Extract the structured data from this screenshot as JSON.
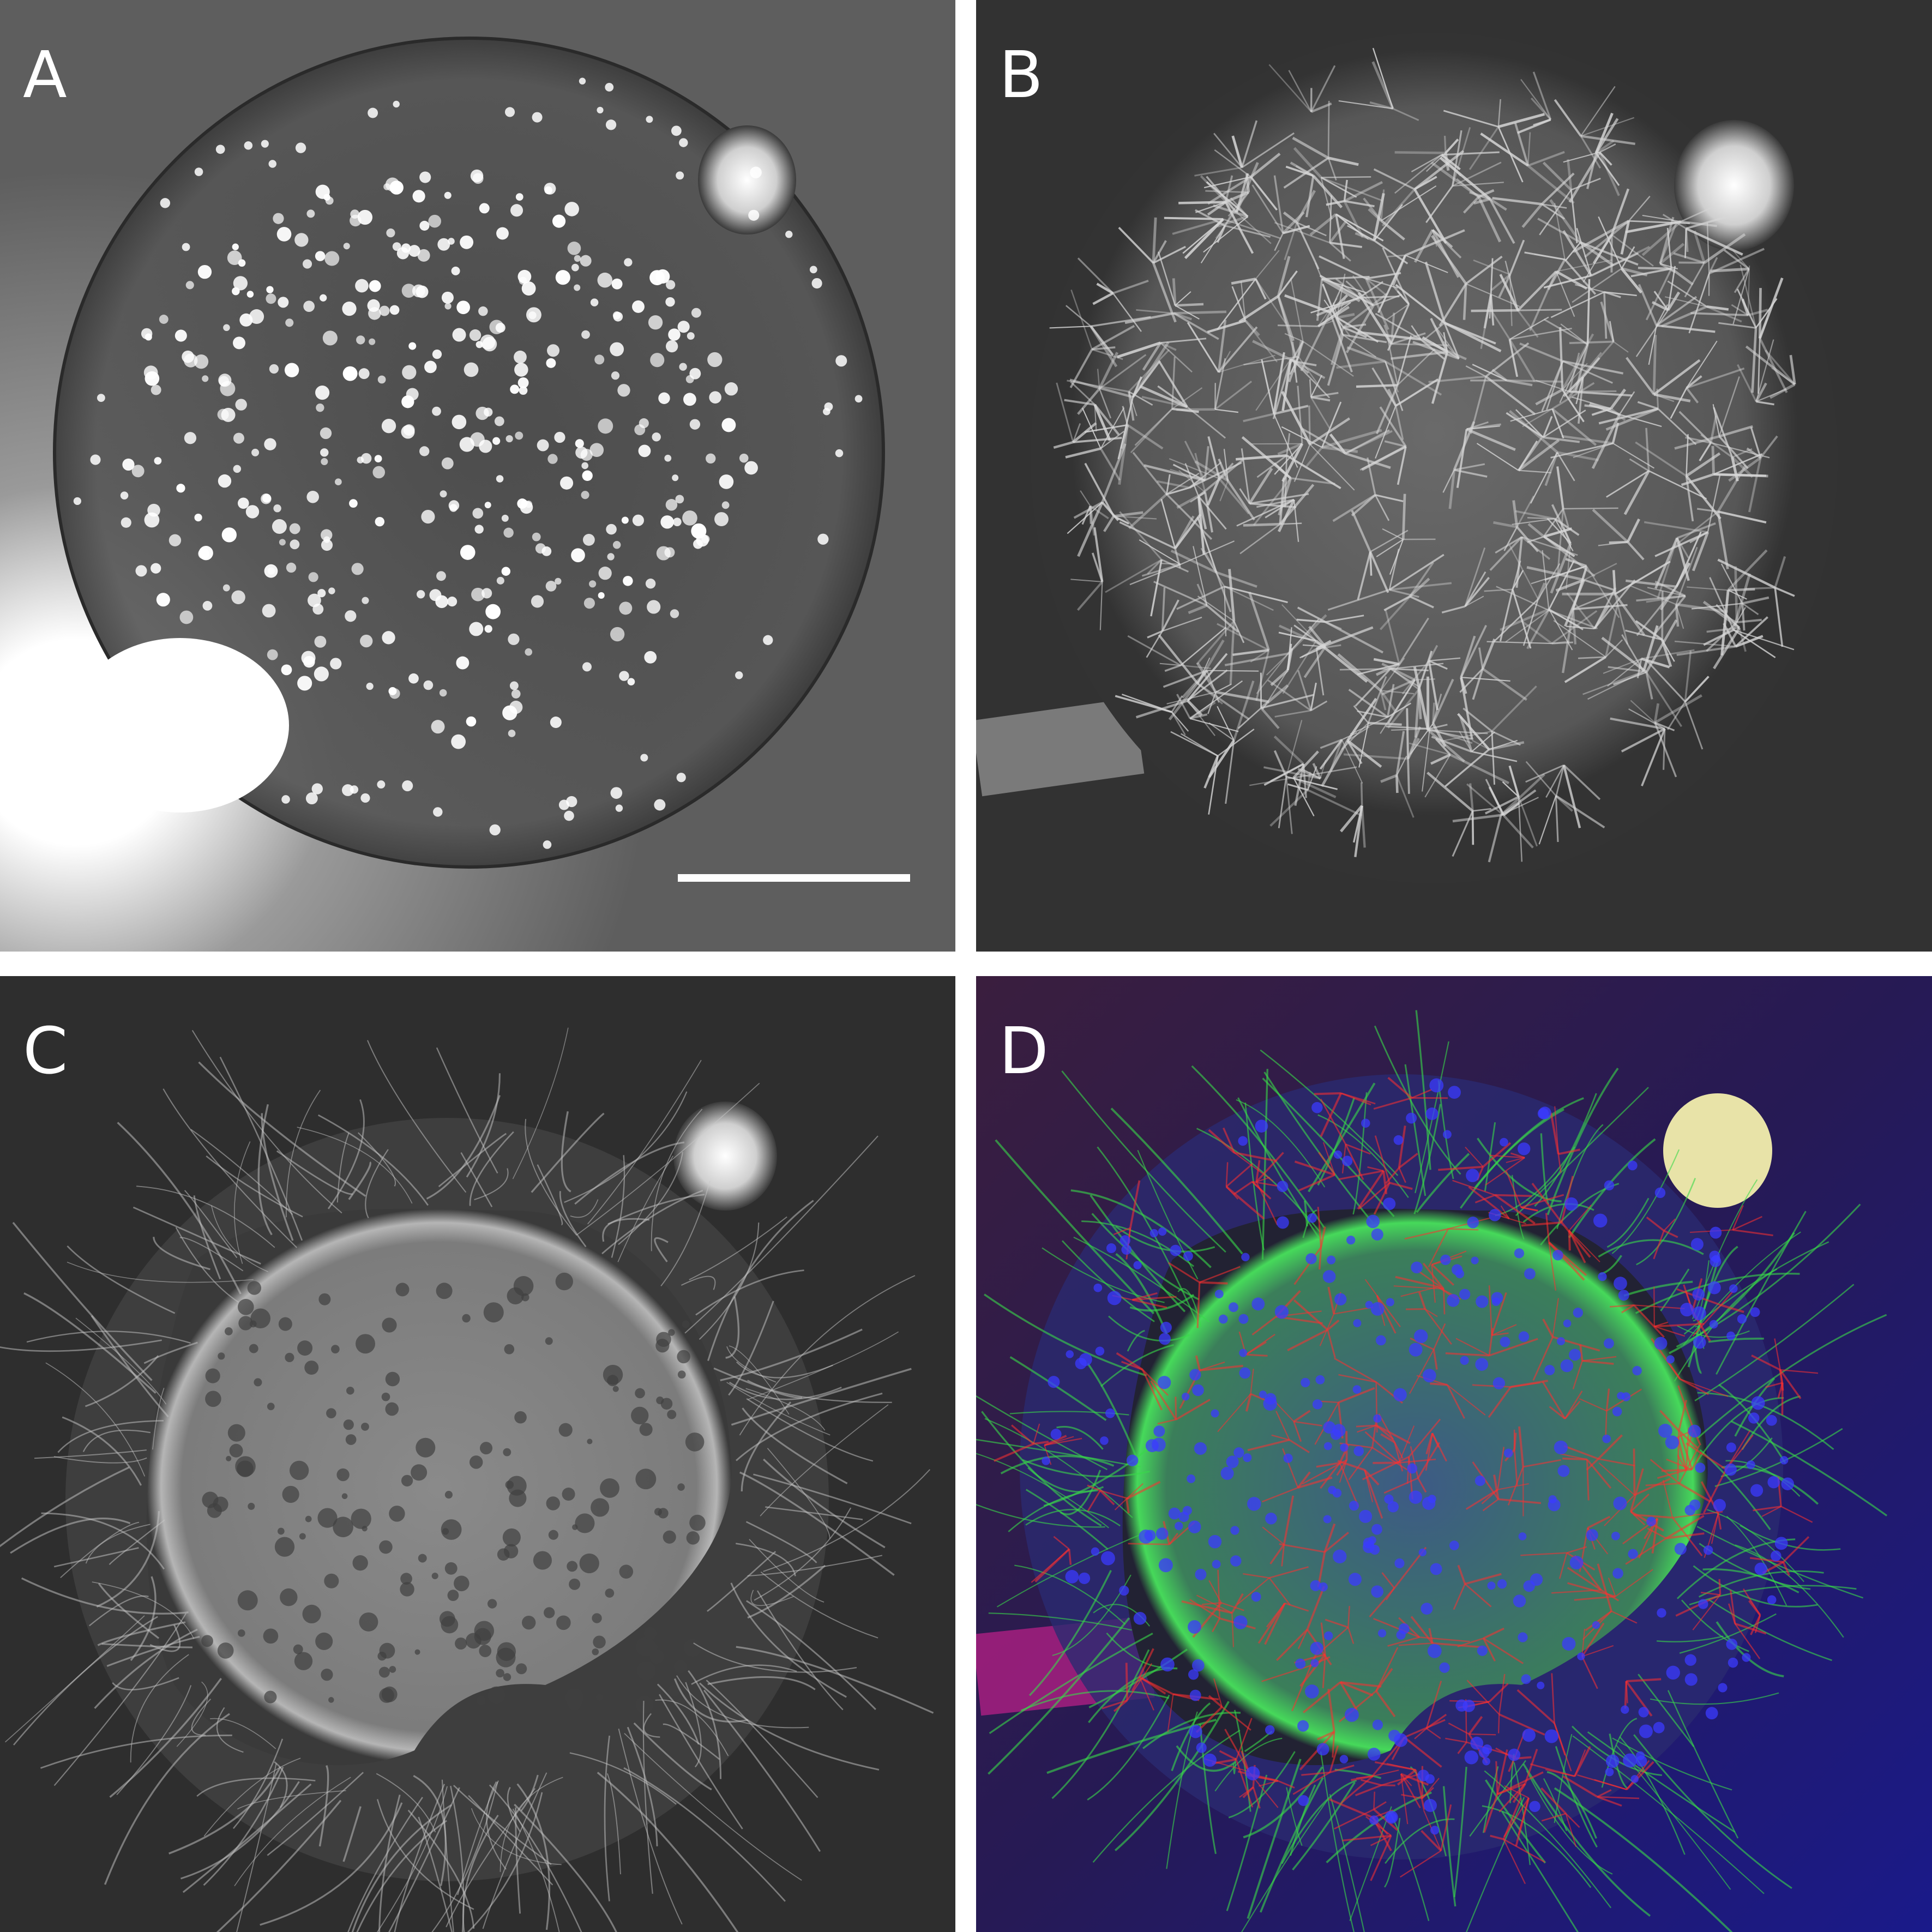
{
  "panels": [
    {
      "label": "A",
      "description_name": "nuclear-stain-panel"
    },
    {
      "label": "B",
      "description_name": "astrocyte-panel"
    },
    {
      "label": "C",
      "description_name": "neurite-panel"
    },
    {
      "label": "D",
      "description_name": "merged-panel"
    }
  ],
  "colors": {
    "background": "#ffffff",
    "panel_a_bg": "#6e6e6e",
    "panel_b_bg": "#323232",
    "panel_c_bg": "#2e2e2e",
    "panel_d_bg": "#2a1d5c",
    "red_channel": "#ff3030",
    "green_channel": "#39d84a",
    "blue_channel": "#3b3bff"
  }
}
